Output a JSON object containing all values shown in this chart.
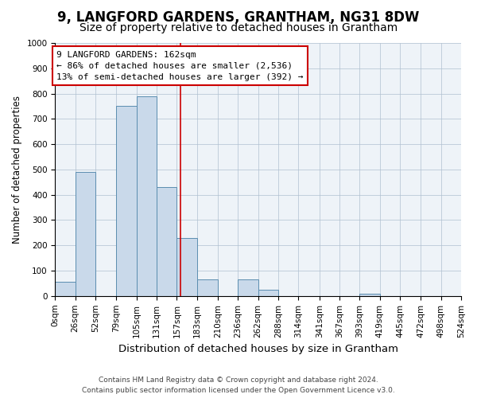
{
  "title": "9, LANGFORD GARDENS, GRANTHAM, NG31 8DW",
  "subtitle": "Size of property relative to detached houses in Grantham",
  "xlabel": "Distribution of detached houses by size in Grantham",
  "ylabel": "Number of detached properties",
  "bin_edges": [
    0,
    26,
    52,
    79,
    105,
    131,
    157,
    183,
    210,
    236,
    262,
    288,
    314,
    341,
    367,
    393,
    419,
    445,
    472,
    498,
    524
  ],
  "bar_heights": [
    55,
    490,
    0,
    750,
    790,
    430,
    230,
    65,
    0,
    65,
    25,
    0,
    0,
    0,
    0,
    10,
    0,
    0,
    0,
    0
  ],
  "bar_color": "#c9d9ea",
  "bar_edge_color": "#5b8db0",
  "property_size": 162,
  "property_line_color": "#cc0000",
  "annotation_text": "9 LANGFORD GARDENS: 162sqm\n← 86% of detached houses are smaller (2,536)\n13% of semi-detached houses are larger (392) →",
  "annotation_box_color": "#cc0000",
  "ylim": [
    0,
    1000
  ],
  "yticks": [
    0,
    100,
    200,
    300,
    400,
    500,
    600,
    700,
    800,
    900,
    1000
  ],
  "footer_line1": "Contains HM Land Registry data © Crown copyright and database right 2024.",
  "footer_line2": "Contains public sector information licensed under the Open Government Licence v3.0.",
  "title_fontsize": 12,
  "subtitle_fontsize": 10,
  "tick_label_fontsize": 7.5,
  "ylabel_fontsize": 8.5,
  "xlabel_fontsize": 9.5,
  "footer_fontsize": 6.5,
  "annotation_fontsize": 8
}
